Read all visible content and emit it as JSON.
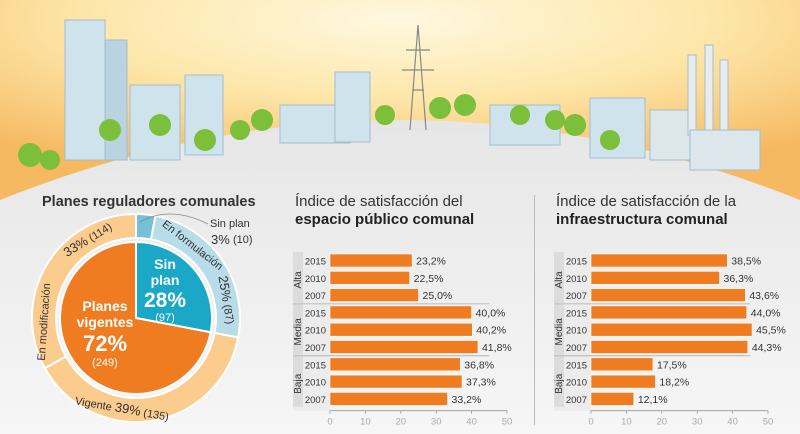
{
  "chart_data": [
    {
      "type": "pie",
      "title": "Planes reguladores comunales",
      "inner": [
        {
          "label": "Sin plan",
          "percent": "28%",
          "percent_value": 28,
          "count": "(97)",
          "color": "#1ba7c6"
        },
        {
          "label_line1": "Planes",
          "label_line2": "vigentes",
          "percent": "72%",
          "percent_value": 72,
          "count": "(249)",
          "color": "#f07c22"
        }
      ],
      "outer": [
        {
          "label": "Sin plan",
          "percent": "3%",
          "percent_value": 3,
          "count": "(10)",
          "color": "#74c0d6"
        },
        {
          "label": "En formulación",
          "percent": "25%",
          "percent_value": 25,
          "count": "(87)",
          "color": "#b8dde8"
        },
        {
          "label": "Vigente",
          "percent": "39%",
          "percent_value": 39,
          "count": "(135)",
          "color": "#fccb8e"
        },
        {
          "label": "En modificación",
          "percent": "33%",
          "percent_value": 33,
          "count": "(114)",
          "color": "#fccb8e"
        }
      ]
    },
    {
      "type": "bar",
      "title_line1": "Índice de satisfacción del",
      "title_line2": "espacio público comunal",
      "groups": [
        "Alta",
        "Media",
        "Baja"
      ],
      "years": [
        "2015",
        "2010",
        "2007"
      ],
      "values": [
        [
          23.2,
          22.5,
          25.0
        ],
        [
          40.0,
          40.2,
          41.8
        ],
        [
          36.8,
          37.3,
          33.2
        ]
      ],
      "labels": [
        [
          "23,2%",
          "22,5%",
          "25,0%"
        ],
        [
          "40,0%",
          "40,2%",
          "41,8%"
        ],
        [
          "36,8%",
          "37,3%",
          "33,2%"
        ]
      ],
      "xticks": [
        "0",
        "10",
        "20",
        "30",
        "40",
        "50"
      ],
      "xlim": [
        0,
        50
      ],
      "color": "#f07c22"
    },
    {
      "type": "bar",
      "title_line1": "Índice de satisfacción de la",
      "title_line2": "infraestructura comunal",
      "groups": [
        "Alta",
        "Media",
        "Baja"
      ],
      "years": [
        "2015",
        "2010",
        "2007"
      ],
      "values": [
        [
          38.5,
          36.3,
          43.6
        ],
        [
          44.0,
          45.5,
          44.3
        ],
        [
          17.5,
          18.2,
          12.1
        ]
      ],
      "labels": [
        [
          "38,5%",
          "36,3%",
          "43,6%"
        ],
        [
          "44,0%",
          "45,5%",
          "44,3%"
        ],
        [
          "17,5%",
          "18,2%",
          "12,1%"
        ]
      ],
      "xticks": [
        "0",
        "10",
        "20",
        "30",
        "40",
        "50"
      ],
      "xlim": [
        0,
        50
      ],
      "color": "#f07c22"
    }
  ]
}
